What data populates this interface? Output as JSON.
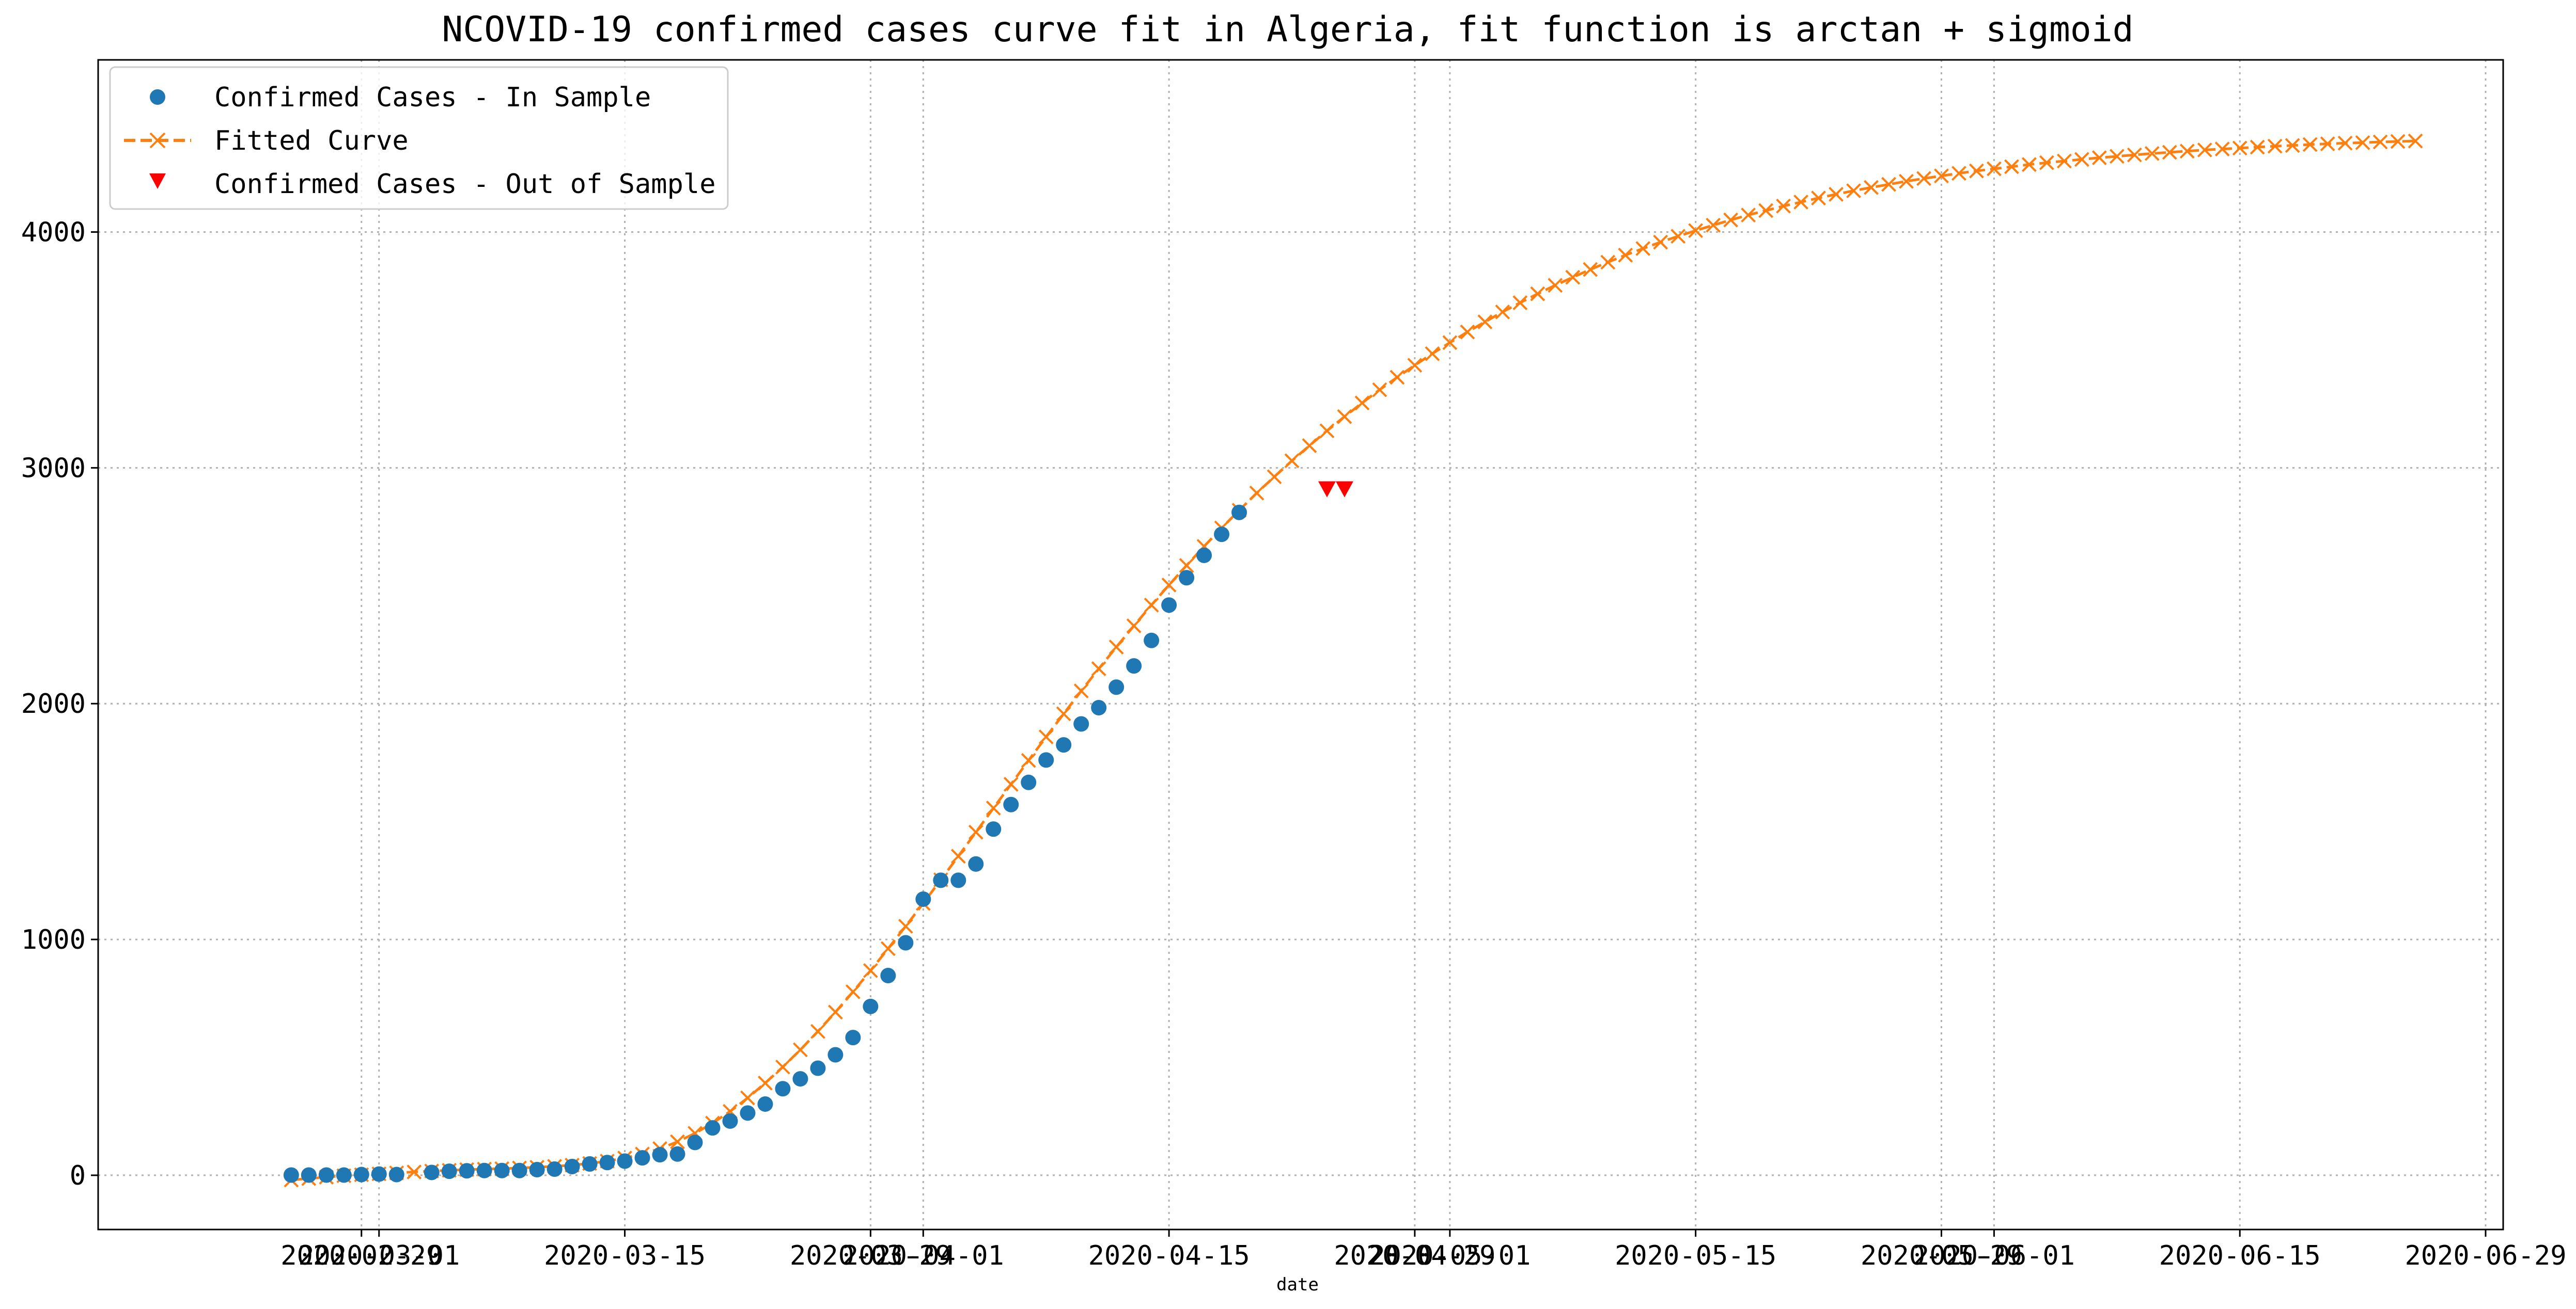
{
  "chart_data": {
    "type": "line",
    "title": "NCOVID-19 confirmed cases curve fit in Algeria, fit function is arctan + sigmoid",
    "xlabel": "date",
    "ylabel": "",
    "grid": true,
    "legend_position": "top-left",
    "x_type": "date",
    "xlim": [
      "2020-02-14",
      "2020-06-30"
    ],
    "ylim": [
      -230,
      4730
    ],
    "y_ticks": [
      0,
      1000,
      2000,
      3000,
      4000
    ],
    "y_tick_labels": [
      "0",
      "1000",
      "2000",
      "3000",
      "4000"
    ],
    "x_ticks": [
      "2020-02-29",
      "2020-03-01",
      "2020-03-15",
      "2020-03-29",
      "2020-04-01",
      "2020-04-15",
      "2020-04-29",
      "2020-05-01",
      "2020-05-15",
      "2020-05-29",
      "2020-06-01",
      "2020-06-15",
      "2020-06-29"
    ],
    "x_tick_labels": [
      "2020-02-29",
      "2020-03-01",
      "2020-03-15",
      "2020-03-29",
      "2020-04-01",
      "2020-04-15",
      "2020-04-29",
      "2020-05-01",
      "2020-05-15",
      "2020-05-29",
      "2020-06-01",
      "2020-06-15",
      "2020-06-29"
    ],
    "series": [
      {
        "name": "Confirmed Cases - In Sample",
        "style": "points",
        "marker": "circle",
        "color": "#1f77b4",
        "x_start": "2020-02-25",
        "values": [
          1,
          1,
          1,
          1,
          3,
          5,
          3,
          null,
          12,
          17,
          19,
          20,
          20,
          20,
          24,
          26,
          37,
          48,
          54,
          60,
          74,
          87,
          90,
          139,
          201,
          230,
          264,
          302,
          367,
          409,
          454,
          511,
          584,
          716,
          847,
          986,
          1171,
          1251,
          1251,
          1320,
          1468,
          1572,
          1666,
          1761,
          1825,
          1914,
          1983,
          2070,
          2160,
          2268,
          2418,
          2534,
          2629,
          2718,
          2811
        ]
      },
      {
        "name": "Fitted Curve",
        "style": "dashed-line-with-x-markers",
        "color": "#ff7f0e",
        "x_start": "2020-02-25",
        "values": [
          -20,
          -14,
          -8,
          -2,
          2,
          6,
          10,
          14,
          18,
          21,
          24,
          26,
          28,
          31,
          34,
          38,
          43,
          50,
          60,
          73,
          90,
          113,
          142,
          178,
          221,
          271,
          328,
          391,
          459,
          532,
          610,
          692,
          778,
          868,
          961,
          1056,
          1153,
          1253,
          1353,
          1455,
          1557,
          1658,
          1759,
          1859,
          1957,
          2054,
          2148,
          2240,
          2330,
          2418,
          2503,
          2586,
          2667,
          2745,
          2820,
          2893,
          2962,
          3030,
          3094,
          3157,
          3217,
          3275,
          3331,
          3384,
          3435,
          3484,
          3531,
          3576,
          3619,
          3661,
          3700,
          3738,
          3774,
          3808,
          3841,
          3872,
          3902,
          3930,
          3957,
          3982,
          4006,
          4029,
          4051,
          4072,
          4091,
          4110,
          4127,
          4144,
          4160,
          4175,
          4189,
          4202,
          4215,
          4227,
          4238,
          4249,
          4259,
          4268,
          4277,
          4286,
          4294,
          4301,
          4308,
          4315,
          4321,
          4327,
          4333,
          4338,
          4343,
          4348,
          4352,
          4356,
          4360,
          4364,
          4367,
          4371,
          4374,
          4377,
          4379,
          4382,
          4384,
          4386
        ]
      },
      {
        "name": "Confirmed Cases - Out of Sample",
        "style": "points",
        "marker": "triangle-down",
        "color": "#ff0000",
        "x": [
          "2020-04-24",
          "2020-04-25"
        ],
        "values": [
          2910,
          2910
        ]
      }
    ]
  }
}
